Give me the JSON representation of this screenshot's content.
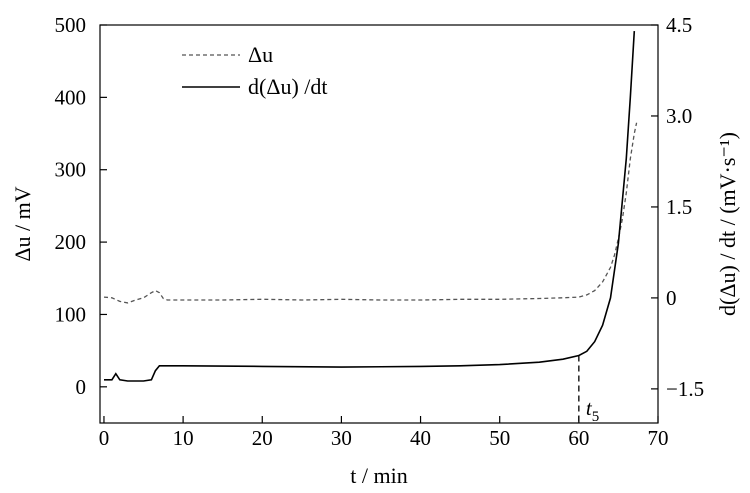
{
  "chart_data": {
    "type": "line",
    "title": "",
    "xlabel": "t / min",
    "ylabel_left": "Δu / mV",
    "ylabel_right": "d(Δu) / dt / (mV·s⁻¹)",
    "xlim": [
      -0.5,
      70
    ],
    "ylim_left": [
      -50,
      500
    ],
    "ylim_right": [
      -2.0625,
      4.5
    ],
    "x_ticks": [
      0,
      10,
      20,
      30,
      40,
      50,
      60,
      70
    ],
    "x_tick_labels": [
      "0",
      "10",
      "20",
      "30",
      "40",
      "50",
      "60",
      "70"
    ],
    "y_left_ticks": [
      0,
      100,
      200,
      300,
      400,
      500
    ],
    "y_left_tick_labels": [
      "0",
      "100",
      "200",
      "300",
      "400",
      "500"
    ],
    "y_right_ticks": [
      -1.5,
      0,
      1.5,
      3.0,
      4.5
    ],
    "y_right_tick_labels": [
      "−1.5",
      "0",
      "1.5",
      "3.0",
      "4.5"
    ],
    "grid": false,
    "legend_position": "top-left",
    "series": [
      {
        "name": "Δu",
        "axis": "left",
        "style": "dashed",
        "color": "#555555",
        "points": [
          [
            0,
            124
          ],
          [
            1,
            123
          ],
          [
            2,
            118
          ],
          [
            3,
            116
          ],
          [
            4,
            120
          ],
          [
            5,
            123
          ],
          [
            6,
            130
          ],
          [
            6.5,
            133
          ],
          [
            7,
            130
          ],
          [
            7.5,
            122
          ],
          [
            8,
            120
          ],
          [
            10,
            120
          ],
          [
            15,
            120
          ],
          [
            20,
            121
          ],
          [
            25,
            120
          ],
          [
            30,
            121
          ],
          [
            35,
            120
          ],
          [
            40,
            120
          ],
          [
            45,
            121
          ],
          [
            50,
            121
          ],
          [
            55,
            122
          ],
          [
            58,
            123
          ],
          [
            60,
            124
          ],
          [
            61,
            127
          ],
          [
            62,
            133
          ],
          [
            63,
            145
          ],
          [
            64,
            165
          ],
          [
            64.5,
            182
          ],
          [
            65,
            205
          ],
          [
            65.5,
            232
          ],
          [
            66,
            268
          ],
          [
            66.5,
            315
          ],
          [
            67,
            350
          ],
          [
            67.3,
            365
          ]
        ]
      },
      {
        "name": "d(Δu) /dt",
        "axis": "right",
        "style": "solid",
        "color": "#000000",
        "points": [
          [
            0,
            -1.35
          ],
          [
            1,
            -1.35
          ],
          [
            1.5,
            -1.25
          ],
          [
            2,
            -1.35
          ],
          [
            3,
            -1.37
          ],
          [
            4,
            -1.37
          ],
          [
            5,
            -1.37
          ],
          [
            6,
            -1.35
          ],
          [
            6.5,
            -1.2
          ],
          [
            7,
            -1.12
          ],
          [
            8,
            -1.12
          ],
          [
            10,
            -1.12
          ],
          [
            20,
            -1.13
          ],
          [
            30,
            -1.14
          ],
          [
            40,
            -1.13
          ],
          [
            45,
            -1.12
          ],
          [
            50,
            -1.1
          ],
          [
            55,
            -1.06
          ],
          [
            58,
            -1.01
          ],
          [
            60,
            -0.95
          ],
          [
            61,
            -0.88
          ],
          [
            62,
            -0.72
          ],
          [
            63,
            -0.45
          ],
          [
            64,
            0.0
          ],
          [
            65,
            0.9
          ],
          [
            66,
            2.3
          ],
          [
            66.5,
            3.3
          ],
          [
            67,
            4.4
          ]
        ]
      }
    ],
    "annotations": [
      {
        "text": "t",
        "subscript": "5",
        "x": 60,
        "marker": "dashed vertical line"
      }
    ]
  }
}
